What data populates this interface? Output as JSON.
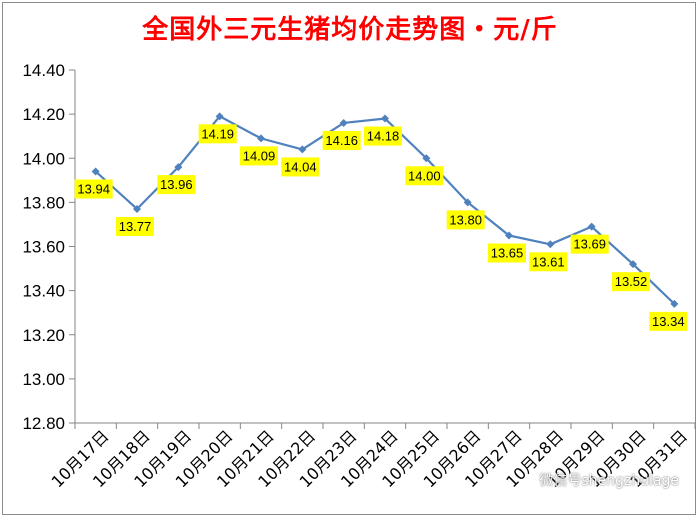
{
  "colors": {
    "title": "#ff0000",
    "line": "#4f81bd",
    "label_bg": "#ffff00",
    "axis": "#868686"
  },
  "chart_data": {
    "type": "line",
    "title": "全国外三元生猪均价走势图・元/斤",
    "xlabel": "",
    "ylabel": "",
    "categories": [
      "10月17日",
      "10月18日",
      "10月19日",
      "10月20日",
      "10月21日",
      "10月22日",
      "10月23日",
      "10月24日",
      "10月25日",
      "10月26日",
      "10月27日",
      "10月28日",
      "10月29日",
      "10月30日",
      "10月31日"
    ],
    "y_ticks": [
      "12.80",
      "13.00",
      "13.20",
      "13.40",
      "13.60",
      "13.80",
      "14.00",
      "14.20",
      "14.40"
    ],
    "series": [
      {
        "values": [
          13.94,
          13.77,
          13.96,
          14.19,
          14.09,
          14.04,
          14.16,
          14.18,
          14.0,
          13.8,
          13.65,
          13.61,
          13.69,
          13.52,
          13.34
        ],
        "labels": [
          "13.94",
          "13.77",
          "13.96",
          "14.19",
          "14.09",
          "14.04",
          "14.16",
          "14.18",
          "14.00",
          "13.80",
          "13.65",
          "13.61",
          "13.69",
          "13.52",
          "13.34"
        ]
      }
    ],
    "ylim": [
      12.8,
      14.4
    ],
    "grid": false,
    "legend": "none",
    "data_labels": true
  },
  "watermark": "微信号shengzhulage"
}
